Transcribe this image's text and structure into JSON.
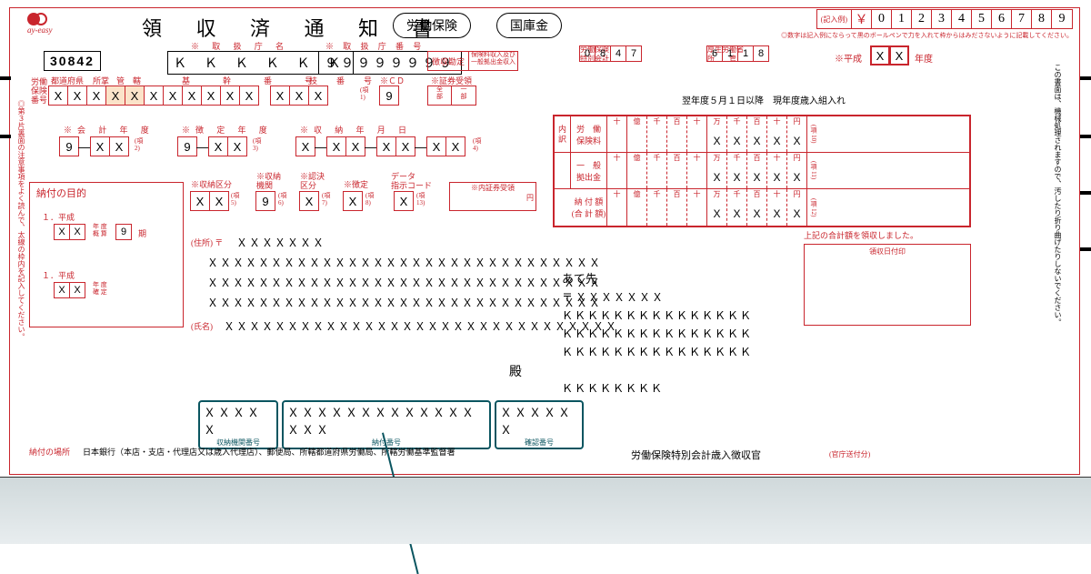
{
  "colors": {
    "red": "#c9252d",
    "teal": "#0a5560",
    "peach": "#fbe3c9"
  },
  "header": {
    "title": "領 収 済 通 知 書",
    "pill1": "労働保険",
    "pill2": "国庫金",
    "entry_example_label": "(記入例)",
    "entry_example_yen": "￥",
    "entry_example_digits": [
      "0",
      "1",
      "2",
      "3",
      "4",
      "5",
      "6",
      "7",
      "8",
      "9"
    ],
    "entry_note": "◎数字は記入例にならって黒のボールペンで力を入れて枠からはみださないように記載してください。"
  },
  "row2": {
    "code": "30842",
    "agency_label": "※ 取 扱 庁 名",
    "agency_value": "Ｋ Ｋ Ｋ Ｋ Ｋ Ｋ",
    "agency_no_label": "※ 取 扱 庁 番 号",
    "agency_no_value": "９９９９９９９９",
    "levy_kantei": "徴収勘定",
    "levy_sub": "保険料収入及び\n一般拠出金収入",
    "tokkai_label": "労働保険\n特別会計",
    "tokkai_value": [
      "0",
      "8",
      "4",
      "7"
    ],
    "kousei_label": "厚生労働省\n所　　管",
    "kousei_value": [
      "6",
      "1",
      "1",
      "8"
    ],
    "heisei_label": "※平成",
    "heisei_value": [
      "X",
      "X"
    ],
    "nendo": "年度"
  },
  "insno": {
    "side": "労働\n保険\n番号",
    "hdr": [
      "都道府県",
      "所掌",
      "管　轄",
      "基　　幹　　番　　号",
      "枝　番　号"
    ],
    "cells": [
      "X",
      "X",
      "X",
      "X",
      "X",
      "X",
      "X",
      "X",
      "X",
      "X",
      "X",
      "",
      "X",
      "X",
      "X"
    ],
    "peach_indices": [
      3,
      4
    ],
    "cd_label": "※ＣＤ",
    "cd_sub": "(項\n1)",
    "cd_value": "9",
    "shoken_label": "※証券受領",
    "shoken_sub1": "全\n部",
    "shoken_sub2": "一\n部"
  },
  "dates": {
    "kaikei_label": "※会 計 年 度",
    "kaikei": [
      "9",
      "—",
      "X",
      "X"
    ],
    "kaikei_sub": "(項\n2)",
    "kettei_label": "※徴 定 年 度",
    "kettei": [
      "9",
      "—",
      "X",
      "X"
    ],
    "kettei_sub": "(項\n3)",
    "shunou_label": "※収 納 年 月 日",
    "shunou": [
      "X",
      "—",
      "X",
      "X",
      "—",
      "X",
      "X",
      "—",
      "X",
      "X"
    ],
    "shunou_sub": "(項\n4)"
  },
  "codes2": {
    "kubun_label": "※収納区分",
    "kubun": [
      "X",
      "X"
    ],
    "kubun_sub": "(項\n5)",
    "kikan_label": "※収納\n機関",
    "kikan": "9",
    "kikan_sub": "(項\n6)",
    "kk_label": "※認決\n区分",
    "kk": "X",
    "kk_sub": "(項\n7)",
    "chotei_label": "※徴定",
    "chotei": "X",
    "chotei_sub": "(項\n8)",
    "dcode_label": "データ\n指示コード",
    "dcode": "X",
    "dcode_sub": "(項\n13)",
    "nai_shoken_label": "※内証券受領",
    "yen": "円"
  },
  "purpose": {
    "title": "納付の目的",
    "r1_label": "１．平成",
    "r1_cells": [
      "X",
      "X"
    ],
    "r1_txt": "年 度\n概 算",
    "r1_nine": "9",
    "r1_ki": "期",
    "r2_label": "１．平成",
    "r2_cells": [
      "X",
      "X"
    ],
    "r2_txt": "年 度\n確 定"
  },
  "amounts": {
    "section_top_note": "翌年度５月１日以降　現年度歳入組入れ",
    "side_label": "内\n訳",
    "rows": [
      {
        "label": "労　働\n保険料",
        "units": [
          "十",
          "億",
          "千",
          "百",
          "十",
          "万",
          "千",
          "百",
          "十",
          "円"
        ],
        "vals": [
          "",
          "",
          "",
          "",
          "",
          "X",
          "X",
          "X",
          "X",
          "X"
        ],
        "end": "(項\n10)"
      },
      {
        "label": "一　般\n拠出金",
        "units": [
          "十",
          "億",
          "千",
          "百",
          "十",
          "万",
          "千",
          "百",
          "十",
          "円"
        ],
        "vals": [
          "",
          "",
          "",
          "",
          "",
          "X",
          "X",
          "X",
          "X",
          "X"
        ],
        "end": "(項\n11)"
      },
      {
        "label": "納 付 額\n(合 計 額)",
        "units": [
          "十",
          "億",
          "千",
          "百",
          "十",
          "万",
          "千",
          "百",
          "十",
          "円"
        ],
        "vals": [
          "",
          "",
          "",
          "",
          "",
          "X",
          "X",
          "X",
          "X",
          "X"
        ],
        "end": "(項\n12)"
      }
    ],
    "footer_note": "上記の合計額を領収しました。",
    "receipt_seal": "領収日付印"
  },
  "addressee": {
    "addr_label": "(住所) 〒",
    "addr_line1": "ＸＸＸＸＸＸＸ",
    "addr_line2": "ＸＸＸＸＸＸＸＸＸＸＸＸＸＸＸＸＸＸＸＸＸＸＸＸＸＸＸＸＸＸＸ",
    "addr_line3": "ＸＸＸＸＸＸＸＸＸＸＸＸＸＸＸＸＸＸＸＸＸＸＸＸＸＸＸＸＸＸＸ",
    "addr_line4": "ＸＸＸＸＸＸＸＸＸＸＸＸＸＸＸＸＸＸＸＸＸＸＸＸＸＸＸＸＸＸＸ",
    "name_label": "(氏名)",
    "name_line": "ＸＸＸＸＸＸＸＸＸＸＸＸＸＸＸＸＸＸＸＸＸＸＸＸＸＸＸＸＸＸＸ",
    "dono": "殿",
    "ate_label": "あて先",
    "ate_zip": "〒",
    "ate_x": "ＸＸＸＸＸＸＸ",
    "ate_k1": "ＫＫＫＫＫＫＫＫＫＫＫＫＫＫＫ",
    "ate_k2": "ＫＫＫＫＫＫＫＫＫＫＫＫＫＫＫ",
    "ate_k3": "ＫＫＫＫＫＫＫＫＫＫＫＫＫＫＫ",
    "ate_k4": "ＫＫＫＫＫＫＫＫ"
  },
  "teal": {
    "b1": {
      "v": "ＸＸＸＸＸ",
      "l": "収納機関番号"
    },
    "b2": {
      "v": "ＸＸＸＸＸＸＸＸＸＸＸＸＸＸＸＸ",
      "l": "納付番号"
    },
    "b3": {
      "v": "ＸＸＸＸＸＸ",
      "l": "確認番号"
    }
  },
  "footer": {
    "nofu_basho_label": "納付の場所",
    "nofu_basho": "日本銀行（本店・支店・代理店又は歳入代理店）、郵便局、所轄都道府県労働局、所轄労働基準監督署",
    "right1": "労働保険特別会計歳入徴収官",
    "right2": "(官庁送付分)"
  },
  "margin_notes": {
    "left_inner": "◎第３片裏面の注意事項をよく読んで、太線の枠内を記入してください。",
    "right_note1": "この書面は、機械処理されますので、汚したり折り曲げたりしないでください。",
    "marks": [
      1,
      1,
      1,
      1,
      1,
      1
    ]
  }
}
